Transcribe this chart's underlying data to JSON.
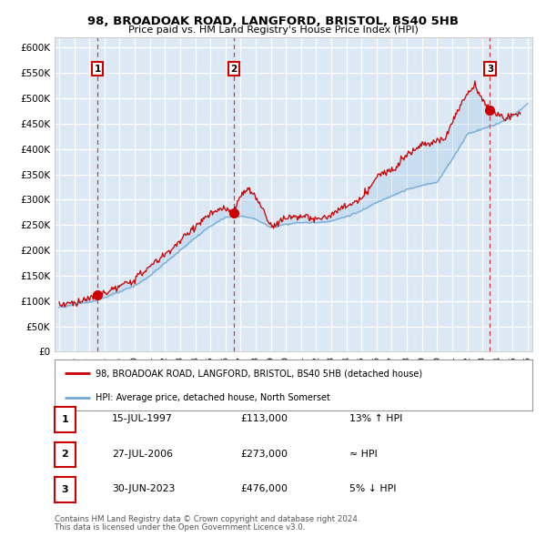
{
  "title_line1": "98, BROADOAK ROAD, LANGFORD, BRISTOL, BS40 5HB",
  "title_line2": "Price paid vs. HM Land Registry's House Price Index (HPI)",
  "xlim_start": 1994.7,
  "xlim_end": 2026.3,
  "ylim_min": 0,
  "ylim_max": 620000,
  "yticks": [
    0,
    50000,
    100000,
    150000,
    200000,
    250000,
    300000,
    350000,
    400000,
    450000,
    500000,
    550000,
    600000
  ],
  "ytick_labels": [
    "£0",
    "£50K",
    "£100K",
    "£150K",
    "£200K",
    "£250K",
    "£300K",
    "£350K",
    "£400K",
    "£450K",
    "£500K",
    "£550K",
    "£600K"
  ],
  "background_color": "#dce9f5",
  "red_line_color": "#cc0000",
  "blue_line_color": "#6fa8d4",
  "sale_marker_color": "#cc0000",
  "dashed_line_color": "#cc0000",
  "sale_points": [
    {
      "year": 1997.54,
      "price": 113000,
      "label": "1"
    },
    {
      "year": 2006.57,
      "price": 273000,
      "label": "2"
    },
    {
      "year": 2023.5,
      "price": 476000,
      "label": "3"
    }
  ],
  "legend_entry1": "98, BROADOAK ROAD, LANGFORD, BRISTOL, BS40 5HB (detached house)",
  "legend_entry2": "HPI: Average price, detached house, North Somerset",
  "table_rows": [
    {
      "num": "1",
      "date": "15-JUL-1997",
      "price": "£113,000",
      "relation": "13% ↑ HPI"
    },
    {
      "num": "2",
      "date": "27-JUL-2006",
      "price": "£273,000",
      "relation": "≈ HPI"
    },
    {
      "num": "3",
      "date": "30-JUN-2023",
      "price": "£476,000",
      "relation": "5% ↓ HPI"
    }
  ],
  "footnote1": "Contains HM Land Registry data © Crown copyright and database right 2024.",
  "footnote2": "This data is licensed under the Open Government Licence v3.0."
}
